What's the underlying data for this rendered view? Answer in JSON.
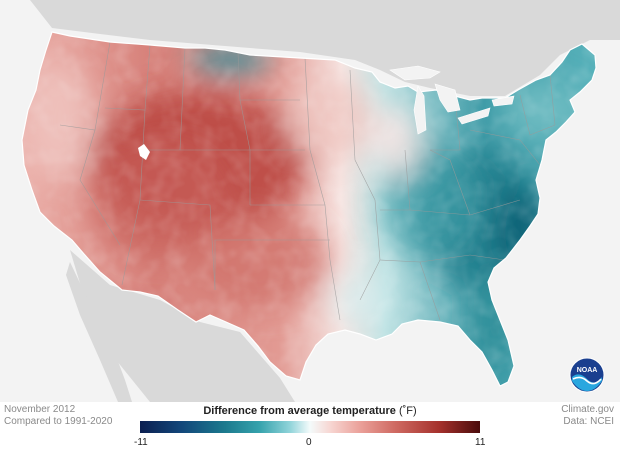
{
  "map": {
    "region": "Contiguous United States",
    "colors": {
      "land_gray": "#d9d9d9",
      "background": "#f3f3f3",
      "cool_max": "#0b1f50",
      "neutral": "#f4fbfb",
      "warm_max": "#4a0b0b"
    },
    "logo_text": "NOAA"
  },
  "footer": {
    "period": "November 2012",
    "baseline": "Compared to 1991-2020",
    "credit": "Climate.gov",
    "data_source": "Data: NCEI"
  },
  "legend": {
    "title": "Difference from average temperature",
    "units": "(˚F)",
    "min_label": "-11",
    "zero_label": "0",
    "max_label": "11",
    "range": [
      -11,
      11
    ]
  }
}
